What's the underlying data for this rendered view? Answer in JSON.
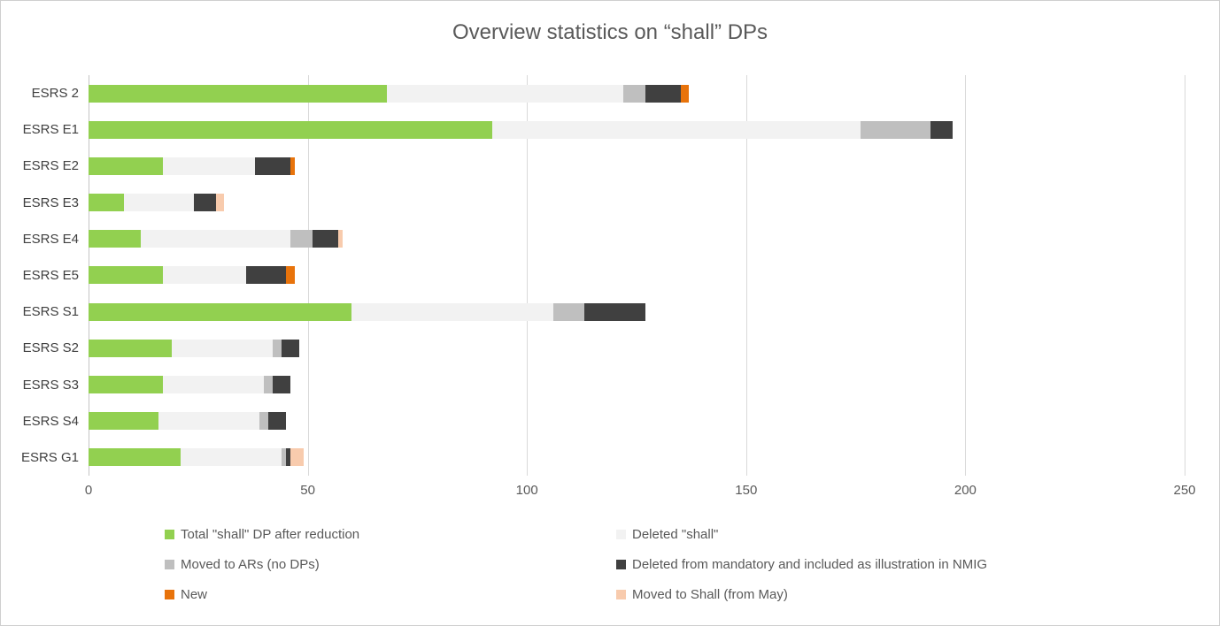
{
  "title": "Overview statistics on “shall” DPs",
  "chart_data": {
    "type": "bar",
    "orientation": "horizontal",
    "stacked": true,
    "title": "Overview statistics on “shall” DPs",
    "categories": [
      "ESRS 2",
      "ESRS E1",
      "ESRS E2",
      "ESRS E3",
      "ESRS E4",
      "ESRS E5",
      "ESRS S1",
      "ESRS S2",
      "ESRS S3",
      "ESRS S4",
      "ESRS G1"
    ],
    "series": [
      {
        "name": "Total \"shall\"  DP after reduction",
        "color": "#92D050",
        "values": [
          68,
          92,
          17,
          8,
          12,
          17,
          60,
          19,
          17,
          16,
          21
        ]
      },
      {
        "name": "Deleted \"shall\"",
        "color": "#F2F2F2",
        "values": [
          54,
          84,
          21,
          16,
          34,
          19,
          46,
          23,
          23,
          23,
          23
        ]
      },
      {
        "name": "Moved to ARs (no DPs)",
        "color": "#BFBFBF",
        "values": [
          5,
          16,
          0,
          0,
          5,
          0,
          7,
          2,
          2,
          2,
          1
        ]
      },
      {
        "name": "Deleted from mandatory and included as illustration in NMIG",
        "color": "#404040",
        "values": [
          8,
          5,
          8,
          5,
          6,
          9,
          14,
          4,
          4,
          4,
          1
        ]
      },
      {
        "name": "New",
        "color": "#E8730B",
        "values": [
          2,
          0,
          1,
          0,
          0,
          2,
          0,
          0,
          0,
          0,
          0
        ]
      },
      {
        "name": "Moved to Shall (from May)",
        "color": "#F8CBAD",
        "values": [
          0,
          0,
          0,
          2,
          1,
          0,
          0,
          0,
          0,
          0,
          3
        ]
      }
    ],
    "xlim": [
      0,
      250
    ],
    "xticks": [
      0,
      50,
      100,
      150,
      200,
      250
    ],
    "grid": "vertical",
    "legend_position": "bottom-two-columns"
  }
}
